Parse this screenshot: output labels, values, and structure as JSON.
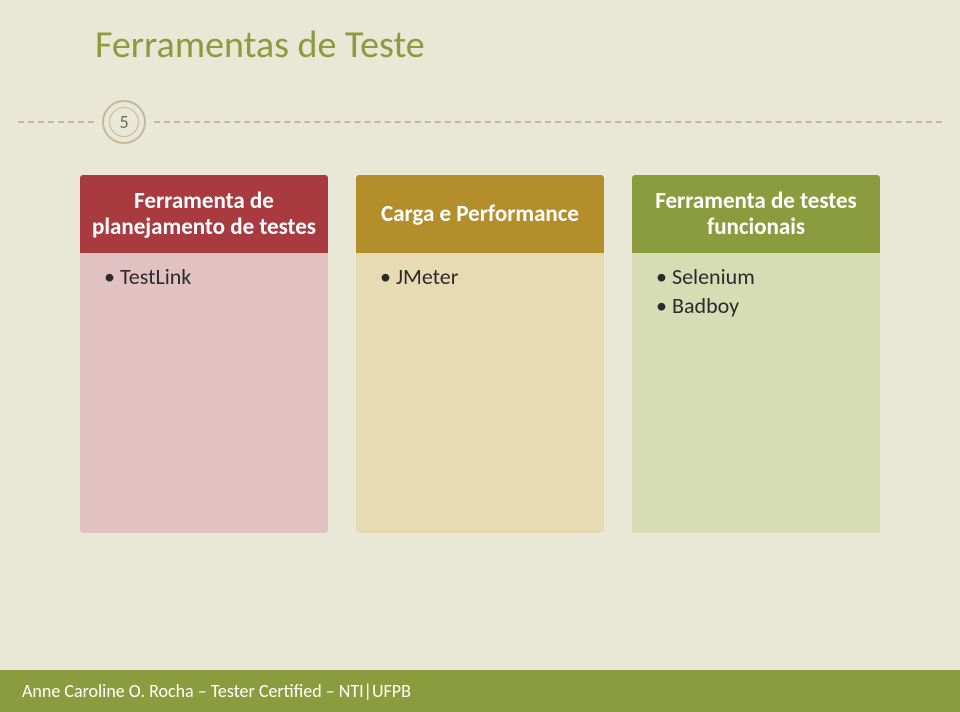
{
  "slide": {
    "title": "Ferramentas de Teste",
    "page_number": "5",
    "title_color": "#8a9c3e",
    "background_color": "#e9e7d5",
    "divider_color": "#c3b99a"
  },
  "cards": [
    {
      "head": "Ferramenta de planejamento de testes",
      "head_bg": "#a93a3f",
      "body_bg": "#e1c1c1",
      "items": [
        "TestLink"
      ]
    },
    {
      "head": "Carga e Performance",
      "head_bg": "#b38e2a",
      "body_bg": "#e8dab3",
      "items": [
        "JMeter"
      ]
    },
    {
      "head": "Ferramenta de testes funcionais",
      "head_bg": "#8a9c3e",
      "body_bg": "#d6ddb5",
      "items": [
        "Selenium",
        "Badboy"
      ]
    }
  ],
  "footer": {
    "text": "Anne Caroline O. Rocha – Tester Certified – NTI|UFPB",
    "bg": "#8a9c3e",
    "color": "#ffffff"
  }
}
